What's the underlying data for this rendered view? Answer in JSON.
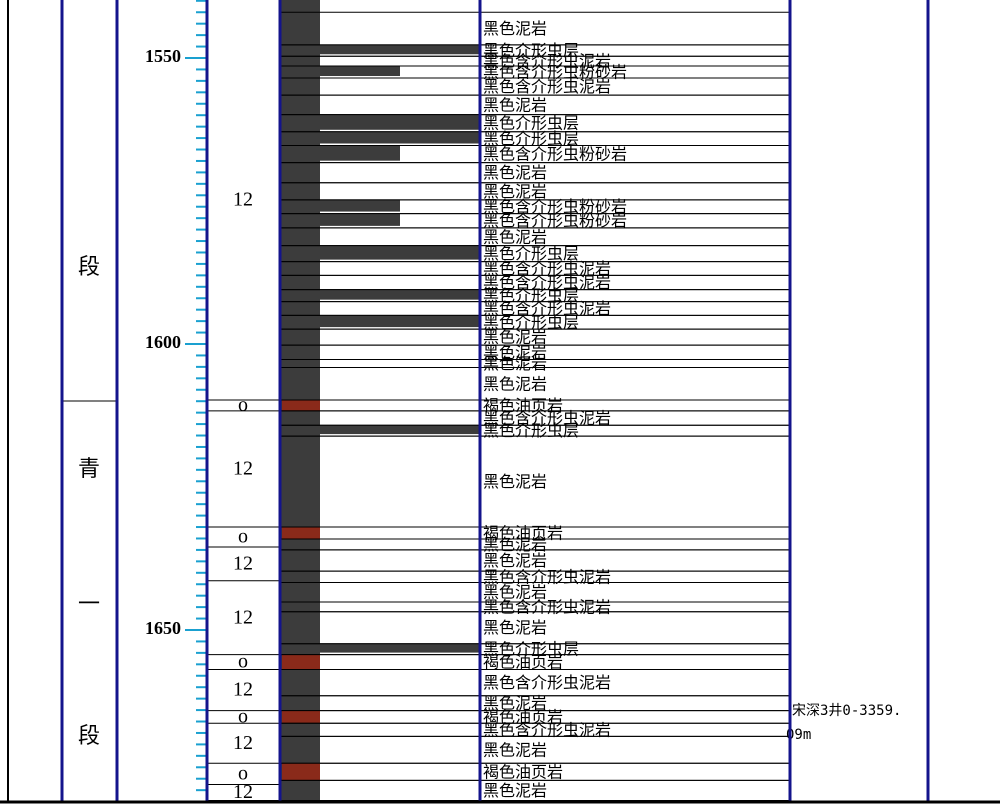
{
  "stage_column": [
    "段",
    "青",
    "一",
    "段"
  ],
  "depth_axis": {
    "ticks": [
      1550,
      1600,
      1650
    ]
  },
  "codes": [
    {
      "bottom": 1609.8,
      "code": "12"
    },
    {
      "bottom": 1611.7,
      "code": "ο"
    },
    {
      "bottom": 1632.0,
      "code": "12"
    },
    {
      "bottom": 1635.5,
      "code": "ο"
    },
    {
      "bottom": 1641.4,
      "code": "12"
    },
    {
      "bottom": 1654.3,
      "code": "12"
    },
    {
      "bottom": 1656.9,
      "code": "ο"
    },
    {
      "bottom": 1664.1,
      "code": "12"
    },
    {
      "bottom": 1666.3,
      "code": "ο"
    },
    {
      "bottom": 1673.3,
      "code": "12"
    },
    {
      "bottom": 1677.0,
      "code": "ο"
    },
    {
      "bottom": 1679.8,
      "code": "12"
    }
  ],
  "layers": [
    {
      "top": 1542.0,
      "bottom": 1547.7,
      "lithology": "黑色泥岩"
    },
    {
      "top": 1547.7,
      "bottom": 1549.7,
      "lithology": "黑色介形虫层"
    },
    {
      "top": 1549.7,
      "bottom": 1551.4,
      "lithology": "黑色含介形虫泥岩"
    },
    {
      "top": 1551.4,
      "bottom": 1553.5,
      "lithology": "黑色含介形虫粉砂岩"
    },
    {
      "top": 1553.5,
      "bottom": 1556.5,
      "lithology": "黑色含介形虫泥岩"
    },
    {
      "top": 1556.5,
      "bottom": 1559.9,
      "lithology": "黑色泥岩"
    },
    {
      "top": 1559.9,
      "bottom": 1562.9,
      "lithology": "黑色介形虫层"
    },
    {
      "top": 1562.9,
      "bottom": 1565.3,
      "lithology": "黑色介形虫层"
    },
    {
      "top": 1565.3,
      "bottom": 1568.3,
      "lithology": "黑色含介形虫粉砂岩"
    },
    {
      "top": 1568.3,
      "bottom": 1571.8,
      "lithology": "黑色泥岩"
    },
    {
      "top": 1571.8,
      "bottom": 1574.8,
      "lithology": "黑色泥岩"
    },
    {
      "top": 1574.8,
      "bottom": 1577.2,
      "lithology": "黑色含介形虫粉砂岩"
    },
    {
      "top": 1577.2,
      "bottom": 1579.7,
      "lithology": "黑色含介形虫粉砂岩"
    },
    {
      "top": 1579.7,
      "bottom": 1582.8,
      "lithology": "黑色泥岩"
    },
    {
      "top": 1582.8,
      "bottom": 1585.6,
      "lithology": "黑色介形虫层"
    },
    {
      "top": 1585.6,
      "bottom": 1588.0,
      "lithology": "黑色含介形虫泥岩"
    },
    {
      "top": 1588.0,
      "bottom": 1590.5,
      "lithology": "黑色含介形虫泥岩"
    },
    {
      "top": 1590.5,
      "bottom": 1592.6,
      "lithology": "黑色介形虫层"
    },
    {
      "top": 1592.6,
      "bottom": 1595.0,
      "lithology": "黑色含介形虫泥岩"
    },
    {
      "top": 1595.0,
      "bottom": 1597.4,
      "lithology": "黑色介形虫层"
    },
    {
      "top": 1597.4,
      "bottom": 1600.2,
      "lithology": "黑色泥岩"
    },
    {
      "top": 1600.2,
      "bottom": 1602.7,
      "lithology": "黑色泥岩"
    },
    {
      "top": 1602.7,
      "bottom": 1604.1,
      "lithology": "黑色泥岩"
    },
    {
      "top": 1604.1,
      "bottom": 1609.8,
      "lithology": "黑色泥岩"
    },
    {
      "top": 1609.8,
      "bottom": 1611.7,
      "lithology": "褐色油页岩"
    },
    {
      "top": 1611.7,
      "bottom": 1614.2,
      "lithology": "黑色含介形虫泥岩"
    },
    {
      "top": 1614.2,
      "bottom": 1616.1,
      "lithology": "黑色介形虫层"
    },
    {
      "top": 1616.1,
      "bottom": 1632.0,
      "lithology": "黑色泥岩"
    },
    {
      "top": 1632.0,
      "bottom": 1634.1,
      "lithology": "褐色油页岩"
    },
    {
      "top": 1634.1,
      "bottom": 1636.0,
      "lithology": "黑色泥岩"
    },
    {
      "top": 1636.0,
      "bottom": 1639.7,
      "lithology": "黑色泥岩"
    },
    {
      "top": 1639.7,
      "bottom": 1641.7,
      "lithology": "黑色含介形虫泥岩"
    },
    {
      "top": 1641.7,
      "bottom": 1645.1,
      "lithology": "黑色泥岩"
    },
    {
      "top": 1645.1,
      "bottom": 1646.8,
      "lithology": "黑色含介形虫泥岩"
    },
    {
      "top": 1646.8,
      "bottom": 1652.4,
      "lithology": "黑色泥岩"
    },
    {
      "top": 1652.4,
      "bottom": 1654.3,
      "lithology": "黑色介形虫层"
    },
    {
      "top": 1654.3,
      "bottom": 1656.9,
      "lithology": "褐色油页岩"
    },
    {
      "top": 1656.9,
      "bottom": 1661.5,
      "lithology": "黑色含介形虫泥岩"
    },
    {
      "top": 1661.5,
      "bottom": 1664.1,
      "lithology": "黑色泥岩"
    },
    {
      "top": 1664.1,
      "bottom": 1666.3,
      "lithology": "褐色油页岩"
    },
    {
      "top": 1666.3,
      "bottom": 1668.6,
      "lithology": "黑色含介形虫泥岩"
    },
    {
      "top": 1668.6,
      "bottom": 1673.3,
      "lithology": "黑色泥岩"
    },
    {
      "top": 1673.3,
      "bottom": 1676.3,
      "lithology": "褐色油页岩"
    },
    {
      "top": 1676.3,
      "bottom": 1679.8,
      "lithology": "黑色泥岩"
    }
  ],
  "annotation": [
    "宋深3井0-3359.",
    "09m"
  ]
}
